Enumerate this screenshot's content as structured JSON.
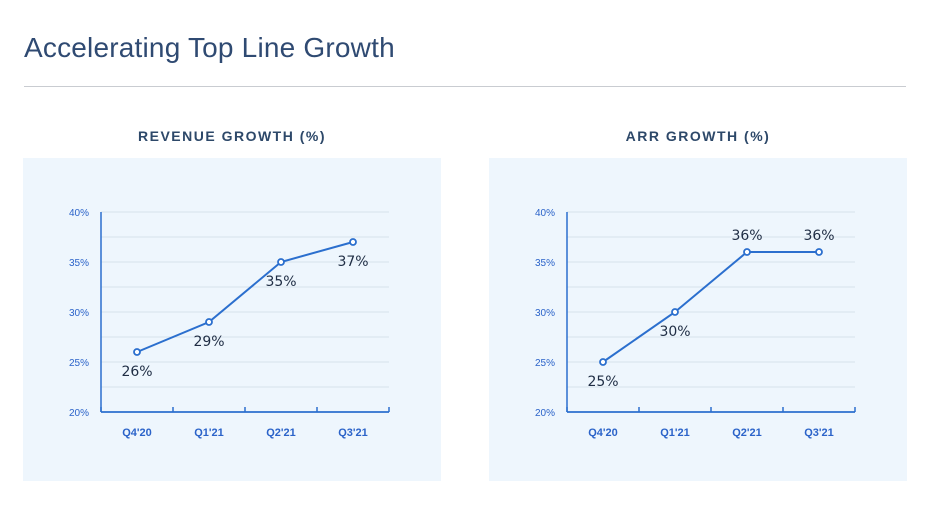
{
  "page": {
    "title": "Accelerating Top Line Growth"
  },
  "chart_data": [
    {
      "type": "line",
      "title": "REVENUE GROWTH (%)",
      "categories": [
        "Q4'20",
        "Q1'21",
        "Q2'21",
        "Q3'21"
      ],
      "values": [
        26,
        29,
        35,
        37
      ],
      "data_labels": [
        "26%",
        "29%",
        "35%",
        "37%"
      ],
      "label_position": [
        "below",
        "below",
        "below",
        "below"
      ],
      "ylim": [
        20,
        40
      ],
      "y_ticks": [
        20,
        25,
        30,
        35,
        40
      ],
      "y_tick_labels": [
        "20%",
        "25%",
        "30%",
        "35%",
        "40%"
      ],
      "grid": true,
      "line_color": "#2b6fce"
    },
    {
      "type": "line",
      "title": "ARR GROWTH (%)",
      "categories": [
        "Q4'20",
        "Q1'21",
        "Q2'21",
        "Q3'21"
      ],
      "values": [
        25,
        30,
        36,
        36
      ],
      "data_labels": [
        "25%",
        "30%",
        "36%",
        "36%"
      ],
      "label_position": [
        "below",
        "below",
        "above",
        "above"
      ],
      "ylim": [
        20,
        40
      ],
      "y_ticks": [
        20,
        25,
        30,
        35,
        40
      ],
      "y_tick_labels": [
        "20%",
        "25%",
        "30%",
        "35%",
        "40%"
      ],
      "grid": true,
      "line_color": "#2b6fce"
    }
  ]
}
